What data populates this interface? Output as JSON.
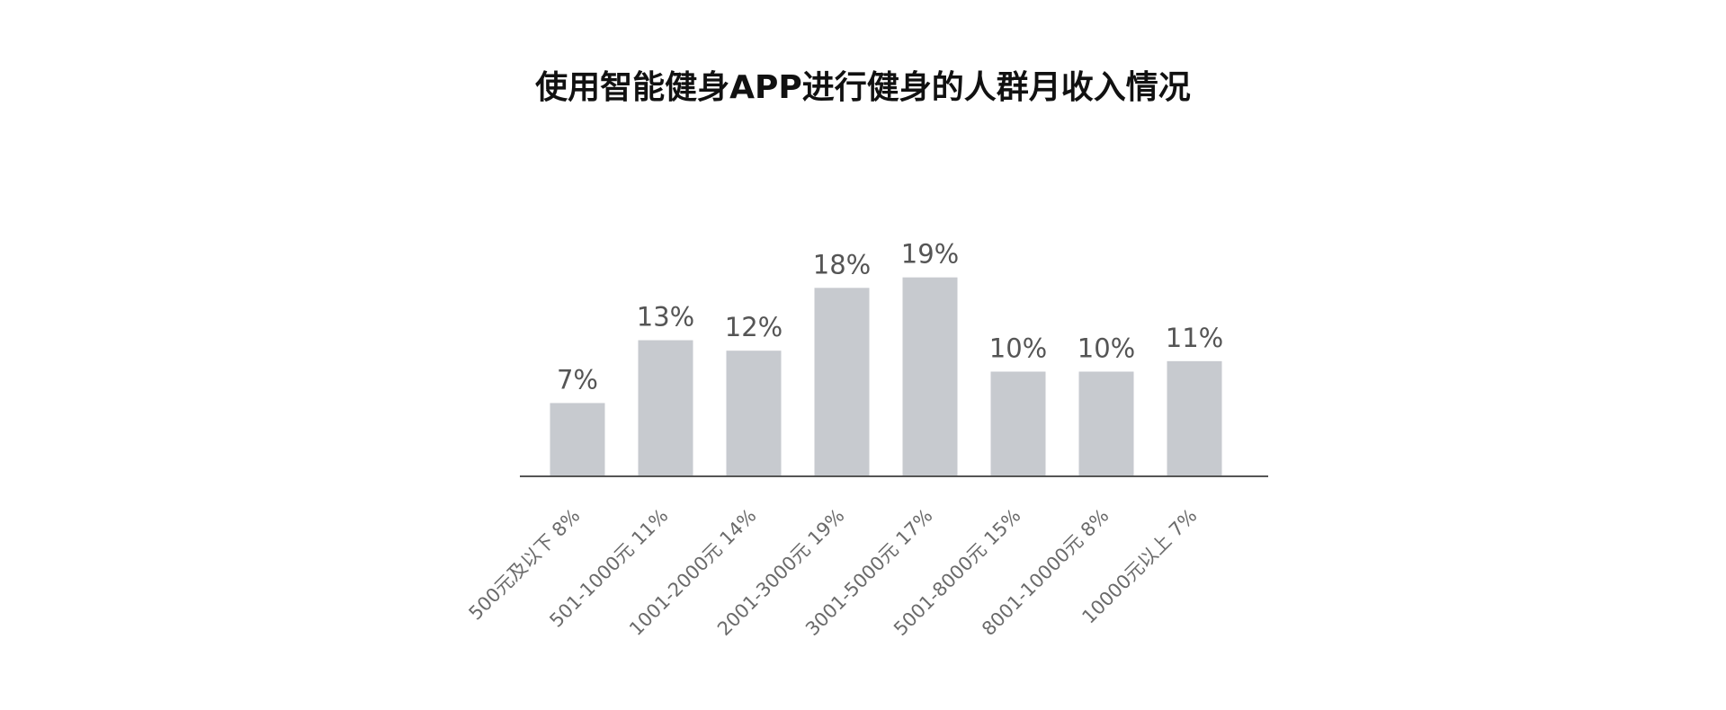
{
  "chart_data": {
    "type": "bar",
    "title": "使用智能健身APP进行健身的人群月收入情况",
    "categories": [
      "500元及以下 8%",
      "501-1000元 11%",
      "1001-2000元 14%",
      "2001-3000元 19%",
      "3001-5000元 17%",
      "5001-8000元 15%",
      "8001-10000元 8%",
      "10000元以上 7%"
    ],
    "values": [
      7,
      13,
      12,
      18,
      19,
      10,
      10,
      11
    ],
    "value_labels": [
      "7%",
      "13%",
      "12%",
      "18%",
      "19%",
      "10%",
      "10%",
      "11%"
    ],
    "xlabel": "",
    "ylabel": "",
    "ylim": [
      0,
      19
    ],
    "grid": false,
    "colors": {
      "bar": "#c7cacf",
      "axis": "#555555"
    }
  }
}
